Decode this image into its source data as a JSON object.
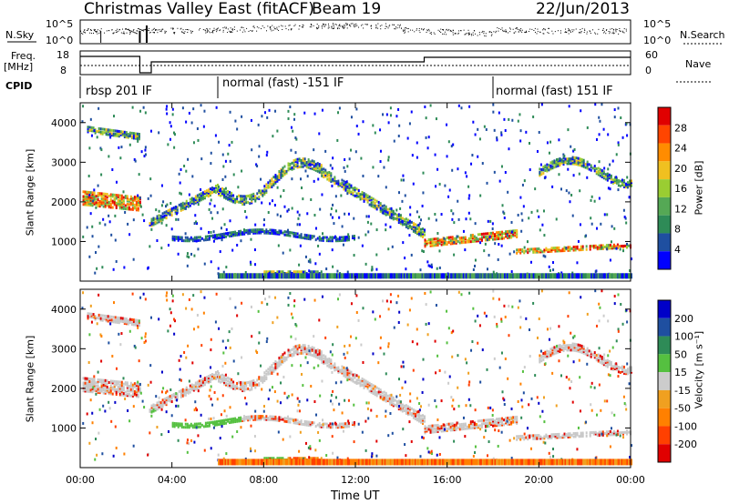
{
  "header": {
    "title": "Christmas Valley East (fitACF)",
    "beam": "Beam 19",
    "date": "22/Jun/2013"
  },
  "params": {
    "nsky_label": "N.Sky",
    "nsky_ticks": [
      "10^5",
      "10^0"
    ],
    "nsearch_label": "N.Search",
    "freq_label": "Freq.",
    "freq_unit": "[MHz]",
    "freq_ticks": [
      "18",
      "8"
    ],
    "nave_ticks": [
      "60",
      "0"
    ],
    "nave_label": "Nave",
    "cpid_label": "CPID",
    "cpid_segments": [
      "rbsp 201 IF",
      "normal (fast) -151 IF",
      "normal (fast) 151 IF"
    ]
  },
  "colors": {
    "power": [
      "#0000ff",
      "#1f4fa0",
      "#2e8b57",
      "#55a855",
      "#9acd32",
      "#f0c020",
      "#ff8c00",
      "#ff4500",
      "#e00000"
    ],
    "velocity": [
      "#0000c8",
      "#1f4fa0",
      "#2e8b57",
      "#55c040",
      "#cccccc",
      "#f0a020",
      "#ff8000",
      "#ff4000",
      "#e00000"
    ],
    "ground": "#c8c8c8"
  },
  "chart_data": [
    {
      "type": "heatmap",
      "name": "power",
      "ylabel": "Slant Range [km]",
      "yticks": [
        "1000",
        "2000",
        "3000",
        "4000"
      ],
      "ylim": [
        0,
        4500
      ],
      "xlim_hours": [
        0,
        24
      ],
      "colorbar_label": "Power [dB]",
      "colorbar_ticks": [
        "4",
        "8",
        "12",
        "16",
        "20",
        "24",
        "28"
      ],
      "colorbar_range": [
        0,
        30
      ]
    },
    {
      "type": "heatmap",
      "name": "velocity",
      "ylabel": "Slant Range [km]",
      "yticks": [
        "1000",
        "2000",
        "3000",
        "4000"
      ],
      "ylim": [
        0,
        4500
      ],
      "xlim_hours": [
        0,
        24
      ],
      "colorbar_label": "Velocity [m s⁻¹]",
      "colorbar_ticks": [
        "200",
        "100",
        "50",
        "15",
        "-15",
        "-50",
        "-100",
        "-200"
      ],
      "xlabel": "Time UT",
      "xticks": [
        "00:00",
        "04:00",
        "08:00",
        "12:00",
        "16:00",
        "20:00",
        "00:00"
      ]
    }
  ]
}
